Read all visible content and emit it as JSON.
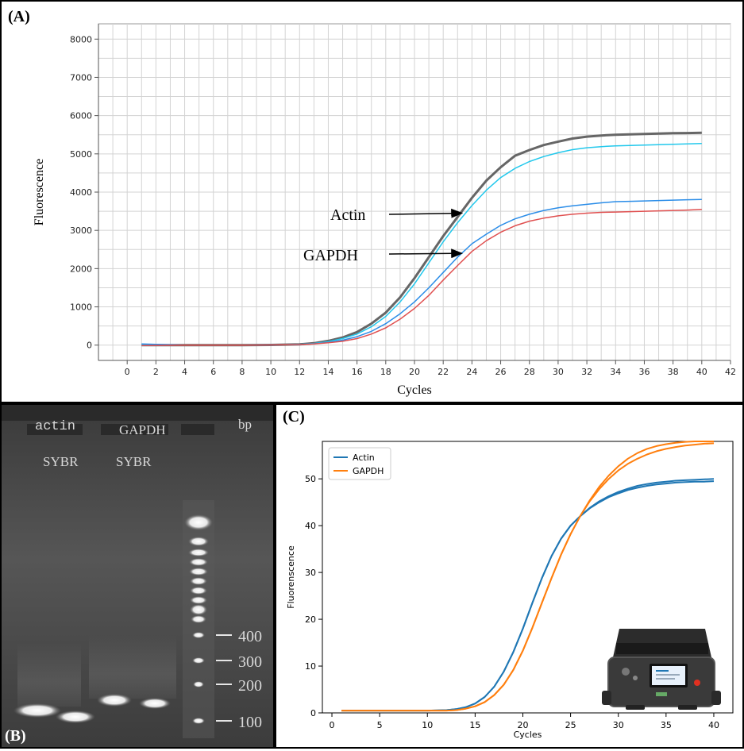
{
  "panel_labels": {
    "a": "(A)",
    "b": "(B)",
    "c": "(C)"
  },
  "chart_data": [
    {
      "type": "line",
      "panel": "A",
      "xlabel": "Cycles",
      "ylabel": "Fluorescence",
      "xlim": [
        -2,
        42
      ],
      "ylim": [
        -400,
        8400
      ],
      "xticks": [
        0,
        2,
        4,
        6,
        8,
        10,
        12,
        14,
        16,
        18,
        20,
        22,
        24,
        26,
        28,
        30,
        32,
        34,
        36,
        38,
        40,
        42
      ],
      "yticks": [
        0,
        1000,
        2000,
        3000,
        4000,
        5000,
        6000,
        7000,
        8000
      ],
      "grid": true,
      "x": [
        1,
        4,
        8,
        10,
        12,
        13,
        14,
        15,
        16,
        17,
        18,
        19,
        20,
        21,
        22,
        23,
        24,
        25,
        26,
        27,
        28,
        29,
        30,
        31,
        32,
        33,
        34,
        35,
        36,
        37,
        38,
        39,
        40
      ],
      "series": [
        {
          "color": "#666666",
          "width": 3,
          "values": [
            0,
            0,
            0,
            5,
            20,
            50,
            110,
            200,
            340,
            560,
            850,
            1250,
            1750,
            2300,
            2850,
            3350,
            3850,
            4300,
            4650,
            4950,
            5100,
            5230,
            5320,
            5400,
            5450,
            5480,
            5500,
            5510,
            5520,
            5530,
            5540,
            5545,
            5550
          ]
        },
        {
          "color": "#22c8ec",
          "width": 1.5,
          "values": [
            0,
            0,
            0,
            5,
            20,
            45,
            90,
            170,
            290,
            480,
            750,
            1130,
            1600,
            2150,
            2700,
            3200,
            3650,
            4050,
            4380,
            4620,
            4800,
            4930,
            5030,
            5110,
            5160,
            5190,
            5210,
            5220,
            5230,
            5240,
            5250,
            5260,
            5270
          ]
        },
        {
          "color": "#2b8de8",
          "width": 1.5,
          "values": [
            30,
            0,
            0,
            5,
            15,
            35,
            70,
            130,
            220,
            360,
            560,
            820,
            1130,
            1500,
            1900,
            2300,
            2650,
            2900,
            3130,
            3300,
            3420,
            3520,
            3590,
            3640,
            3680,
            3720,
            3750,
            3760,
            3770,
            3780,
            3790,
            3800,
            3810
          ]
        },
        {
          "color": "#e05050",
          "width": 1.5,
          "values": [
            -10,
            0,
            0,
            5,
            15,
            30,
            60,
            100,
            170,
            290,
            450,
            680,
            960,
            1300,
            1700,
            2080,
            2450,
            2730,
            2950,
            3120,
            3240,
            3320,
            3380,
            3420,
            3450,
            3470,
            3480,
            3490,
            3500,
            3510,
            3520,
            3530,
            3550
          ]
        }
      ],
      "annotations": [
        {
          "text": "Actin",
          "x_end": 23.3,
          "y_end": 3450
        },
        {
          "text": "GAPDH",
          "x_end": 23.3,
          "y_end": 2400
        }
      ]
    },
    {
      "type": "line",
      "panel": "C",
      "xlabel": "Cycles",
      "ylabel": "Fluorenscence",
      "xlim": [
        -1,
        42
      ],
      "ylim": [
        0,
        58
      ],
      "xticks": [
        0,
        5,
        10,
        15,
        20,
        25,
        30,
        35,
        40
      ],
      "yticks": [
        0,
        10,
        20,
        30,
        40,
        50
      ],
      "legend_position": "top-left",
      "x": [
        1,
        5,
        10,
        12,
        13,
        14,
        15,
        16,
        17,
        18,
        19,
        20,
        21,
        22,
        23,
        24,
        25,
        26,
        27,
        28,
        29,
        30,
        31,
        32,
        33,
        34,
        35,
        36,
        37,
        38,
        39,
        40
      ],
      "series": [
        {
          "name": "Actin",
          "color": "#1f77b4",
          "values": [
            0.5,
            0.5,
            0.5,
            0.6,
            0.8,
            1.2,
            2.0,
            3.4,
            5.6,
            8.8,
            13.0,
            18.0,
            23.5,
            28.8,
            33.5,
            37.2,
            40.0,
            42.0,
            43.8,
            45.2,
            46.3,
            47.2,
            47.9,
            48.5,
            48.9,
            49.2,
            49.4,
            49.6,
            49.7,
            49.8,
            49.9,
            50.0
          ]
        },
        {
          "name": "GAPDH",
          "color": "#ff7f0e",
          "values": [
            0.5,
            0.5,
            0.5,
            0.5,
            0.6,
            0.9,
            1.4,
            2.3,
            3.8,
            6.0,
            9.2,
            13.3,
            18.2,
            23.5,
            28.8,
            33.8,
            38.2,
            42.0,
            45.2,
            47.8,
            50.0,
            51.8,
            53.2,
            54.3,
            55.2,
            55.9,
            56.4,
            56.8,
            57.1,
            57.3,
            57.5,
            57.6
          ]
        },
        {
          "color": "#1f77b4",
          "values": [
            0.5,
            0.5,
            0.5,
            0.6,
            0.8,
            1.2,
            2.0,
            3.4,
            5.6,
            8.8,
            13.0,
            18.0,
            23.5,
            28.8,
            33.5,
            37.2,
            40.0,
            42.0,
            43.7,
            45.0,
            46.1,
            46.9,
            47.6,
            48.1,
            48.5,
            48.8,
            49.0,
            49.2,
            49.3,
            49.4,
            49.4,
            49.5
          ]
        },
        {
          "color": "#ff7f0e",
          "values": [
            0.5,
            0.5,
            0.5,
            0.5,
            0.6,
            0.9,
            1.4,
            2.3,
            3.8,
            6.0,
            9.2,
            13.3,
            18.2,
            23.5,
            28.8,
            33.8,
            38.2,
            42.0,
            45.4,
            48.3,
            50.7,
            52.7,
            54.3,
            55.5,
            56.4,
            57.0,
            57.4,
            57.7,
            57.9,
            58.0,
            58.0,
            58.0
          ]
        }
      ]
    }
  ],
  "gel": {
    "bp_label": "bp",
    "top_labels": [
      "actin",
      "GAPDH"
    ],
    "dye_labels": [
      "SYBR",
      "SYBR"
    ],
    "ladder_marks": [
      "400",
      "300",
      "200",
      "100"
    ]
  }
}
